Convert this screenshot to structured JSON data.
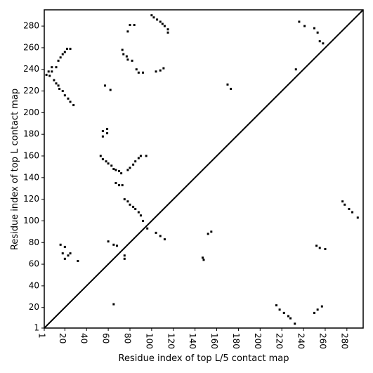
{
  "chart_data": {
    "type": "scatter",
    "xlabel": "Residue index of top L/5 contact map",
    "ylabel": "Residue index of top L contact map",
    "xlim": [
      1,
      295
    ],
    "ylim": [
      1,
      295
    ],
    "xticks": [
      1,
      20,
      40,
      60,
      80,
      100,
      120,
      140,
      160,
      180,
      200,
      220,
      240,
      260,
      280
    ],
    "yticks": [
      1,
      20,
      40,
      60,
      80,
      100,
      120,
      140,
      160,
      180,
      200,
      220,
      240,
      260,
      280
    ],
    "color": "#000000",
    "x": [
      3,
      6,
      8,
      10,
      12,
      14,
      15,
      18,
      20,
      23,
      25,
      28,
      8,
      12,
      5,
      14,
      16,
      18,
      20,
      22,
      25,
      78,
      80,
      84,
      100,
      102,
      105,
      108,
      110,
      112,
      115,
      115,
      73,
      74,
      77,
      78,
      82,
      86,
      88,
      92,
      104,
      108,
      111,
      57,
      62,
      170,
      173,
      233,
      236,
      241,
      250,
      253,
      255,
      258,
      55,
      55,
      59,
      59,
      53,
      55,
      58,
      60,
      63,
      65,
      67,
      70,
      72,
      78,
      80,
      83,
      85,
      88,
      90,
      95,
      67,
      70,
      73,
      75,
      78,
      80,
      83,
      85,
      88,
      90,
      92,
      96,
      104,
      108,
      112,
      60,
      65,
      68,
      75,
      75,
      16,
      20,
      18,
      20,
      23,
      25,
      32,
      147,
      148,
      152,
      155,
      65,
      276,
      278,
      282,
      285,
      290,
      252,
      255,
      260,
      215,
      218,
      222,
      226,
      228,
      232,
      250,
      253,
      257
    ],
    "y": [
      235,
      234,
      238,
      230,
      227,
      225,
      222,
      220,
      216,
      213,
      210,
      207,
      242,
      242,
      238,
      248,
      251,
      254,
      256,
      259,
      259,
      275,
      281,
      281,
      290,
      288,
      286,
      284,
      282,
      280,
      277,
      274,
      258,
      254,
      252,
      249,
      248,
      240,
      237,
      237,
      238,
      239,
      241,
      225,
      221,
      226,
      222,
      240,
      284,
      280,
      278,
      274,
      266,
      264,
      178,
      183,
      181,
      185,
      160,
      157,
      155,
      153,
      151,
      148,
      147,
      146,
      144,
      147,
      149,
      152,
      155,
      158,
      160,
      160,
      135,
      133,
      133,
      120,
      118,
      115,
      113,
      111,
      108,
      105,
      100,
      93,
      89,
      86,
      83,
      81,
      78,
      77,
      68,
      65,
      78,
      76,
      70,
      65,
      68,
      70,
      63,
      66,
      64,
      88,
      90,
      23,
      118,
      115,
      111,
      108,
      103,
      77,
      75,
      74,
      22,
      18,
      15,
      12,
      10,
      5,
      15,
      18,
      21
    ]
  }
}
